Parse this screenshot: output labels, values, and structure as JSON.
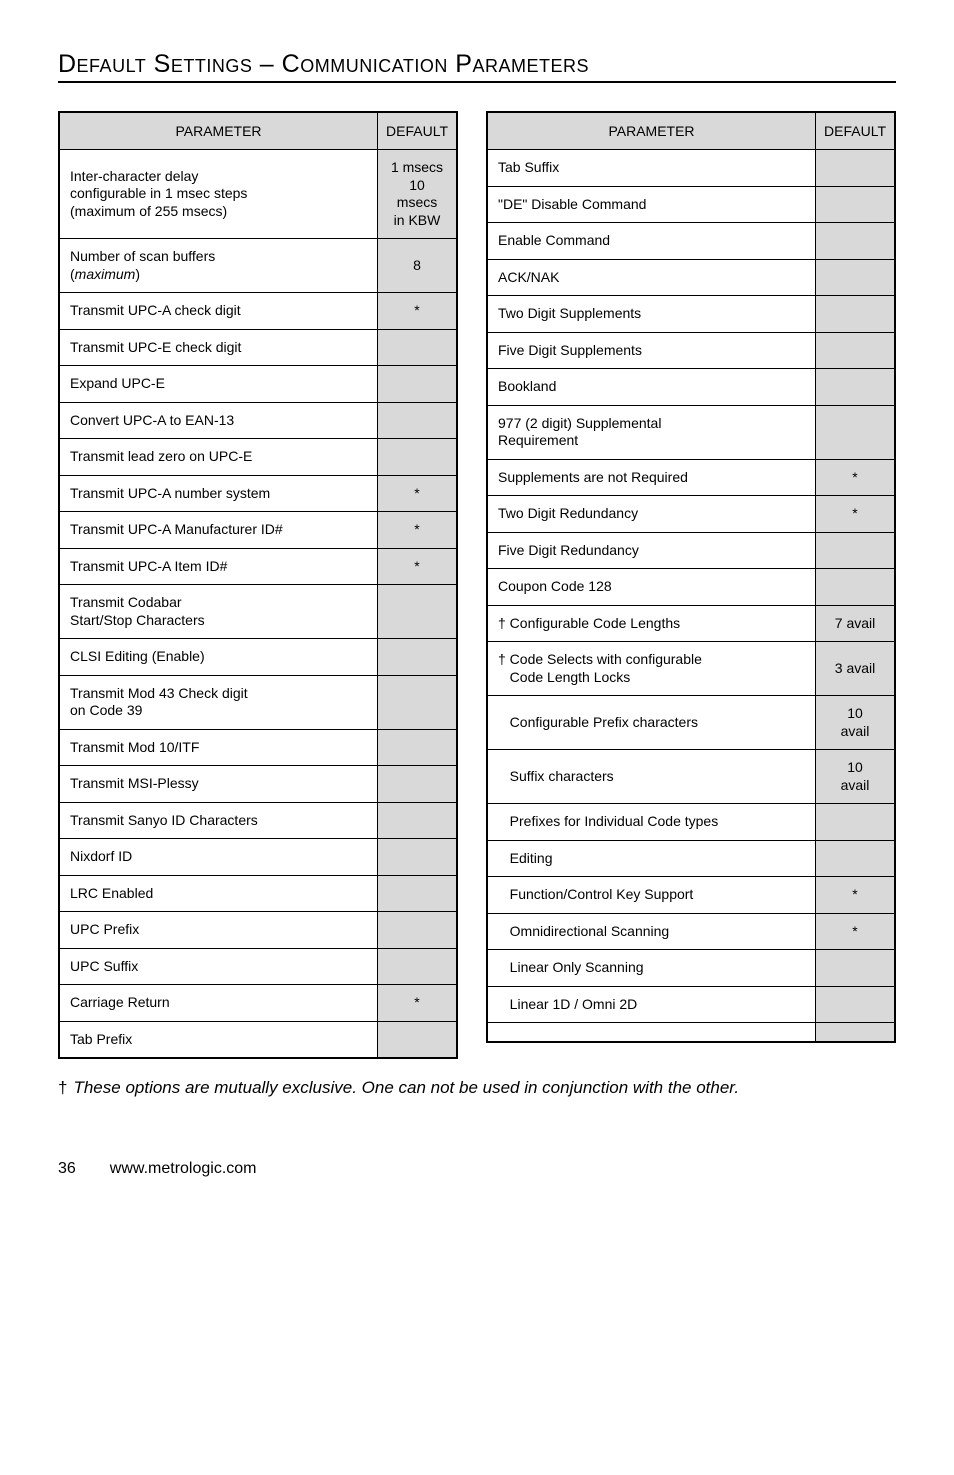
{
  "heading": "Default Settings – Communication Parameters",
  "left_table": {
    "headers": [
      "PARAMETER",
      "DEFAULT"
    ],
    "rows": [
      {
        "param_html": "Inter-character delay<br>configurable in 1 msec steps<br>(maximum of 255 msecs)",
        "def": "1 msecs\n10 msecs\nin KBW"
      },
      {
        "param_html": "Number of scan buffers<br>(<span class=\"em\">maximum</span>)",
        "def": "8"
      },
      {
        "param_html": "Transmit UPC-A check digit",
        "def": "*"
      },
      {
        "param_html": "Transmit UPC-E check digit",
        "def": ""
      },
      {
        "param_html": "Expand UPC-E",
        "def": ""
      },
      {
        "param_html": "Convert UPC-A to EAN-13",
        "def": ""
      },
      {
        "param_html": "Transmit lead zero on UPC-E",
        "def": ""
      },
      {
        "param_html": "Transmit UPC-A number system",
        "def": "*"
      },
      {
        "param_html": "Transmit UPC-A Manufacturer ID#",
        "def": "*"
      },
      {
        "param_html": "Transmit  UPC-A Item ID#",
        "def": "*"
      },
      {
        "param_html": "Transmit Codabar<br>Start/Stop Characters",
        "def": ""
      },
      {
        "param_html": "CLSI Editing (Enable)",
        "def": ""
      },
      {
        "param_html": "Transmit Mod 43 Check digit<br>on Code 39",
        "def": ""
      },
      {
        "param_html": "Transmit Mod 10/ITF",
        "def": ""
      },
      {
        "param_html": "Transmit MSI-Plessy",
        "def": ""
      },
      {
        "param_html": "Transmit Sanyo ID Characters",
        "def": ""
      },
      {
        "param_html": "Nixdorf ID",
        "def": ""
      },
      {
        "param_html": "LRC Enabled",
        "def": ""
      },
      {
        "param_html": "UPC Prefix",
        "def": ""
      },
      {
        "param_html": "UPC Suffix",
        "def": ""
      },
      {
        "param_html": "Carriage Return",
        "def": "*"
      },
      {
        "param_html": "Tab Prefix",
        "def": ""
      }
    ]
  },
  "right_table": {
    "headers": [
      "PARAMETER",
      "DEFAULT"
    ],
    "rows": [
      {
        "param_html": "Tab Suffix",
        "def": ""
      },
      {
        "param_html": "\"DE\" Disable Command",
        "def": ""
      },
      {
        "param_html": "Enable Command",
        "def": ""
      },
      {
        "param_html": "ACK/NAK",
        "def": ""
      },
      {
        "param_html": "Two Digit Supplements",
        "def": ""
      },
      {
        "param_html": "Five Digit Supplements",
        "def": ""
      },
      {
        "param_html": "Bookland",
        "def": ""
      },
      {
        "param_html": "977 (2 digit) Supplemental<br>Requirement",
        "def": ""
      },
      {
        "param_html": "Supplements are not Required",
        "def": "*"
      },
      {
        "param_html": "Two Digit Redundancy",
        "def": "*"
      },
      {
        "param_html": "Five Digit Redundancy",
        "def": ""
      },
      {
        "param_html": "Coupon Code 128",
        "def": ""
      },
      {
        "param_html": "† Configurable Code Lengths",
        "def": "7 avail"
      },
      {
        "param_html": "† Code Selects with configurable<br>&nbsp;&nbsp;&nbsp;Code Length Locks",
        "def": "3 avail"
      },
      {
        "param_html": "&nbsp;&nbsp;&nbsp;Configurable Prefix characters",
        "def": "10\navail"
      },
      {
        "param_html": "&nbsp;&nbsp;&nbsp;Suffix characters",
        "def": "10\navail"
      },
      {
        "param_html": "&nbsp;&nbsp;&nbsp;Prefixes for Individual Code types",
        "def": ""
      },
      {
        "param_html": "&nbsp;&nbsp;&nbsp;Editing",
        "def": ""
      },
      {
        "param_html": "&nbsp;&nbsp;&nbsp;Function/Control Key Support",
        "def": "*"
      },
      {
        "param_html": "&nbsp;&nbsp;&nbsp;Omnidirectional Scanning",
        "def": "*"
      },
      {
        "param_html": "&nbsp;&nbsp;&nbsp;Linear Only Scanning",
        "def": ""
      },
      {
        "param_html": "&nbsp;&nbsp;&nbsp;Linear 1D / Omni 2D",
        "def": ""
      },
      {
        "param_html": "",
        "def": ""
      }
    ]
  },
  "footnote": {
    "marker": "†",
    "text": "These options are mutually exclusive.  One can not be used in conjunction with the other."
  },
  "footer": {
    "page": "36",
    "url": "www.metrologic.com"
  },
  "colors": {
    "header_bg": "#d9d9d9",
    "def_bg": "#d9d9d9",
    "border": "#000000",
    "text": "#000000",
    "bg": "#ffffff"
  }
}
